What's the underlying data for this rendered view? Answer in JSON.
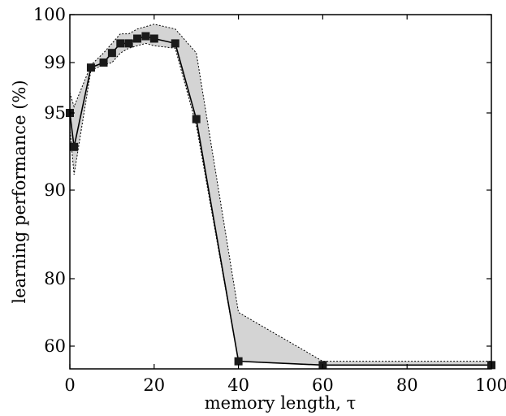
{
  "chart_data": {
    "type": "line",
    "xlabel": "memory length, τ",
    "ylabel": "learning performance (%)",
    "xlim": [
      0,
      100
    ],
    "x_ticks": [
      0,
      20,
      40,
      60,
      80,
      100
    ],
    "y_ticks": [
      60,
      80,
      90,
      95,
      99,
      100
    ],
    "y_scale": "nonlinear (tick-label based)",
    "grid": false,
    "legend": "none",
    "series": [
      {
        "x": [
          0,
          1,
          5,
          8,
          10,
          12,
          14,
          16,
          18,
          20,
          25,
          30,
          40,
          60,
          100
        ],
        "values": [
          95.0,
          92.8,
          98.6,
          99.0,
          99.2,
          99.4,
          99.4,
          99.5,
          99.55,
          99.5,
          99.4,
          94.6,
          56.0,
          55.0,
          55.0
        ],
        "band_upper": [
          96.6,
          95.5,
          98.8,
          99.2,
          99.4,
          99.6,
          99.6,
          99.7,
          99.75,
          99.8,
          99.7,
          99.2,
          70.0,
          56.0,
          56.0
        ],
        "band_lower": [
          94.0,
          91.0,
          98.4,
          98.8,
          99.0,
          99.2,
          99.3,
          99.35,
          99.4,
          99.35,
          99.3,
          94.2,
          56.0,
          55.0,
          55.0
        ]
      }
    ],
    "colors": {
      "line": "#000000",
      "marker": "#1a1a1a",
      "band_fill": "#d4d4d4",
      "band_edge": "#000000"
    }
  }
}
